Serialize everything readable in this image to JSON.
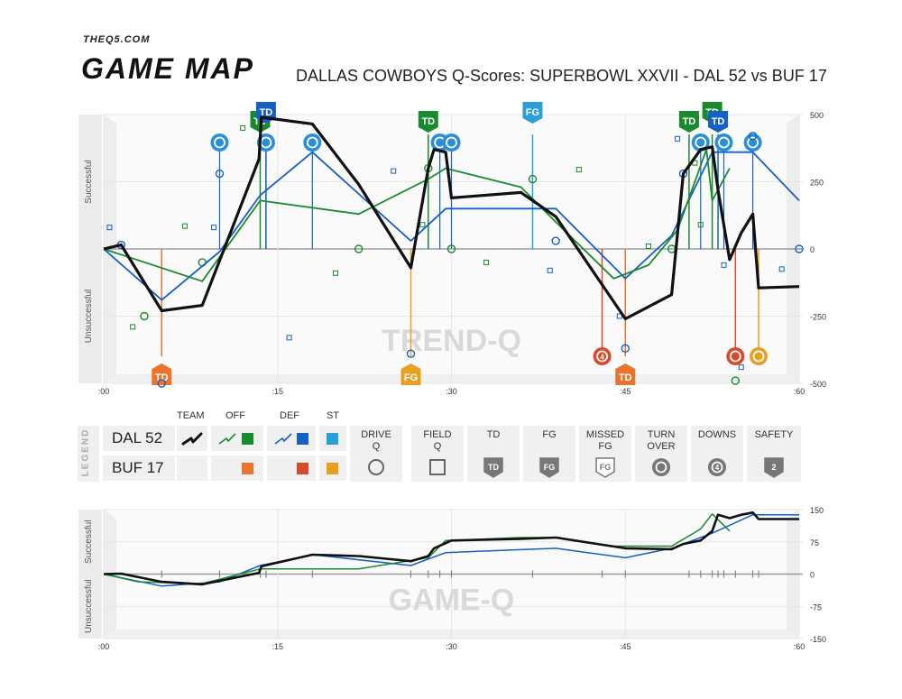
{
  "brand": {
    "site": "THEQ5.COM",
    "name": "GAME MAP"
  },
  "title": "DALLAS COWBOYS Q-Scores: SUPERBOWL XXVII - DAL 52 vs BUF 17",
  "colors": {
    "team": "#111111",
    "offense": "#1a8a2e",
    "defense": "#1560c4",
    "special_teams": "#2a9fd8",
    "opp_offense": "#e8742e",
    "opp_defense": "#d94a2a",
    "opp_special_teams": "#e8a020"
  },
  "chart_data": [
    {
      "type": "line",
      "name": "trend-q",
      "watermark": "TREND-Q",
      "ylabel_top": "Successful",
      "ylabel_bottom": "Unsuccessful",
      "xlim": [
        0,
        60
      ],
      "ylim": [
        -500,
        500
      ],
      "x_ticks": [
        ":00",
        ":15",
        ":30",
        ":45",
        ":60"
      ],
      "x_tick_values": [
        0,
        15,
        30,
        45,
        60
      ],
      "y_ticks": [
        500,
        250,
        0,
        -250,
        -500
      ],
      "series": [
        {
          "name": "TEAM",
          "role": "team",
          "x": [
            0,
            1.5,
            5,
            8.5,
            13.4,
            13.6,
            18,
            22,
            26.5,
            28,
            28.5,
            29.5,
            30,
            36,
            39,
            45,
            49,
            50,
            51.5,
            52.5,
            53,
            54,
            55,
            56,
            56.5,
            60
          ],
          "y": [
            0,
            15,
            -230,
            -210,
            335,
            490,
            465,
            240,
            -70,
            300,
            370,
            360,
            190,
            210,
            120,
            -260,
            -170,
            280,
            370,
            380,
            220,
            -40,
            60,
            130,
            -145,
            -140
          ]
        },
        {
          "name": "OFF",
          "role": "offense",
          "x": [
            0,
            8.5,
            13.5,
            22,
            28,
            29.5,
            36,
            39,
            44,
            47,
            49.5,
            52,
            52.5,
            54
          ],
          "y": [
            0,
            -120,
            180,
            130,
            260,
            300,
            230,
            100,
            -110,
            -60,
            70,
            370,
            180,
            300
          ]
        },
        {
          "name": "DEF",
          "role": "defense",
          "x": [
            0,
            5,
            10,
            13.5,
            18,
            26.5,
            29.5,
            39,
            45,
            49,
            52.5,
            56,
            60
          ],
          "y": [
            0,
            -190,
            -10,
            200,
            360,
            30,
            150,
            150,
            -110,
            50,
            360,
            360,
            180
          ]
        }
      ],
      "events": [
        {
          "kind": "TD",
          "team": "DAL",
          "unit": "offense",
          "x": 13.5
        },
        {
          "kind": "TD",
          "team": "DAL",
          "unit": "defense",
          "x": 14
        },
        {
          "kind": "TD",
          "team": "DAL",
          "unit": "offense",
          "x": 28
        },
        {
          "kind": "FG",
          "team": "DAL",
          "unit": "special_teams",
          "x": 37
        },
        {
          "kind": "TD",
          "team": "DAL",
          "unit": "offense",
          "x": 50.5
        },
        {
          "kind": "TD",
          "team": "DAL",
          "unit": "offense",
          "x": 52.5
        },
        {
          "kind": "TD",
          "team": "DAL",
          "unit": "defense",
          "x": 53
        },
        {
          "kind": "TD",
          "team": "BUF",
          "unit": "offense",
          "x": 5
        },
        {
          "kind": "FG",
          "team": "BUF",
          "unit": "special_teams",
          "x": 26.5
        },
        {
          "kind": "TD",
          "team": "BUF",
          "unit": "offense",
          "x": 45
        },
        {
          "kind": "DOWNS",
          "team": "BUF",
          "unit": "defense",
          "x": 43
        },
        {
          "kind": "TURNOVER",
          "team": "BUF",
          "unit": "defense",
          "x": 54.5
        },
        {
          "kind": "TURNOVER",
          "team": "BUF",
          "unit": "special_teams",
          "x": 56.5
        }
      ],
      "turnovers_gained": [
        {
          "unit": "defense",
          "x": 10
        },
        {
          "unit": "defense",
          "x": 14
        },
        {
          "unit": "defense",
          "x": 18
        },
        {
          "unit": "defense",
          "x": 29
        },
        {
          "unit": "defense",
          "x": 30
        },
        {
          "unit": "defense",
          "x": 51.5
        },
        {
          "unit": "defense",
          "x": 53.5
        },
        {
          "unit": "defense",
          "x": 56
        }
      ],
      "drive_q": [
        {
          "unit": "defense",
          "x": 1.5,
          "y": 15
        },
        {
          "unit": "offense",
          "x": 3.5,
          "y": -250
        },
        {
          "unit": "offense",
          "x": 8.5,
          "y": -50
        },
        {
          "unit": "defense",
          "x": 10,
          "y": 280
        },
        {
          "unit": "offense",
          "x": 22,
          "y": 0
        },
        {
          "unit": "defense",
          "x": 26.5,
          "y": -390
        },
        {
          "unit": "offense",
          "x": 28,
          "y": 300
        },
        {
          "unit": "offense",
          "x": 30,
          "y": 0
        },
        {
          "unit": "offense",
          "x": 37,
          "y": 260
        },
        {
          "unit": "defense",
          "x": 39,
          "y": 30
        },
        {
          "unit": "offense",
          "x": 49,
          "y": 0
        },
        {
          "unit": "defense",
          "x": 50,
          "y": 280
        },
        {
          "unit": "defense",
          "x": 45,
          "y": -370
        },
        {
          "unit": "defense",
          "x": 56,
          "y": 420
        },
        {
          "unit": "defense",
          "x": 60,
          "y": 0
        },
        {
          "unit": "offense",
          "x": 54.5,
          "y": -490
        },
        {
          "unit": "defense",
          "x": 5,
          "y": -500
        }
      ],
      "field_q": [
        {
          "unit": "defense",
          "x": 0.5,
          "y": 80
        },
        {
          "unit": "offense",
          "x": 2.5,
          "y": -290
        },
        {
          "unit": "offense",
          "x": 7,
          "y": 85
        },
        {
          "unit": "defense",
          "x": 9.5,
          "y": 80
        },
        {
          "unit": "offense",
          "x": 12,
          "y": 450
        },
        {
          "unit": "defense",
          "x": 16,
          "y": -330
        },
        {
          "unit": "offense",
          "x": 20,
          "y": -90
        },
        {
          "unit": "defense",
          "x": 25,
          "y": 290
        },
        {
          "unit": "offense",
          "x": 27.5,
          "y": 90
        },
        {
          "unit": "offense",
          "x": 33,
          "y": -50
        },
        {
          "unit": "defense",
          "x": 38.5,
          "y": -80
        },
        {
          "unit": "offense",
          "x": 41,
          "y": 295
        },
        {
          "unit": "defense",
          "x": 44.5,
          "y": -250
        },
        {
          "unit": "offense",
          "x": 47,
          "y": 10
        },
        {
          "unit": "defense",
          "x": 49.5,
          "y": 410
        },
        {
          "unit": "offense",
          "x": 51,
          "y": 320
        },
        {
          "unit": "offense",
          "x": 51.5,
          "y": 90
        },
        {
          "unit": "defense",
          "x": 53.5,
          "y": -60
        },
        {
          "unit": "defense",
          "x": 58.5,
          "y": -75
        },
        {
          "unit": "defense",
          "x": 55,
          "y": -440
        }
      ]
    },
    {
      "type": "line",
      "name": "game-q",
      "watermark": "GAME-Q",
      "ylabel_top": "Successful",
      "ylabel_bottom": "Unsuccessful",
      "xlim": [
        0,
        60
      ],
      "ylim": [
        -150,
        150
      ],
      "x_ticks": [
        ":00",
        ":15",
        ":30",
        ":45",
        ":60"
      ],
      "x_tick_values": [
        0,
        15,
        30,
        45,
        60
      ],
      "y_ticks": [
        150,
        75,
        0,
        -75,
        -150
      ],
      "series": [
        {
          "name": "TEAM",
          "role": "team",
          "x": [
            0,
            1.5,
            5,
            8.5,
            13.4,
            13.6,
            18,
            22,
            26.5,
            28,
            28.5,
            29.5,
            30,
            36,
            39,
            45,
            49,
            50,
            51.5,
            52.5,
            53,
            54,
            55,
            56,
            56.5,
            60
          ],
          "y": [
            0,
            1,
            -18,
            -24,
            3,
            18,
            45,
            42,
            30,
            42,
            60,
            72,
            78,
            82,
            85,
            60,
            58,
            70,
            78,
            100,
            138,
            130,
            138,
            143,
            128,
            128
          ]
        },
        {
          "name": "OFF",
          "role": "offense",
          "x": [
            0,
            3,
            8.5,
            13.5,
            22,
            28,
            29.5,
            36,
            39,
            44,
            49,
            51.5,
            52.5,
            54
          ],
          "y": [
            0,
            -18,
            -22,
            12,
            12,
            38,
            78,
            85,
            85,
            65,
            65,
            105,
            140,
            100
          ]
        },
        {
          "name": "DEF",
          "role": "defense",
          "x": [
            0,
            5,
            10,
            13.5,
            18,
            26.5,
            29.5,
            39,
            45,
            49,
            52.5,
            56,
            60
          ],
          "y": [
            0,
            -28,
            -18,
            20,
            45,
            20,
            50,
            60,
            38,
            60,
            95,
            138,
            138
          ]
        }
      ]
    }
  ],
  "legend": {
    "side_label": "LEGEND",
    "headers": {
      "team": "TEAM",
      "off": "OFF",
      "def": "DEF",
      "st": "ST"
    },
    "teams": [
      {
        "label": "DAL 52"
      },
      {
        "label": "BUF 17"
      }
    ],
    "symbols": [
      {
        "label": "DRIVE\nQ",
        "icon": "circle-outline"
      },
      {
        "label": "FIELD\nQ",
        "icon": "square-outline"
      },
      {
        "label": "TD",
        "icon": "td-shield",
        "badge": "TD"
      },
      {
        "label": "FG",
        "icon": "fg-shield",
        "badge": "FG"
      },
      {
        "label": "MISSED\nFG",
        "icon": "missed-fg-shield",
        "badge": "FG"
      },
      {
        "label": "TURN\nOVER",
        "icon": "turnover-arrows"
      },
      {
        "label": "DOWNS",
        "icon": "downs-arrows",
        "badge": "4"
      },
      {
        "label": "SAFETY",
        "icon": "safety-shield",
        "badge": "2"
      }
    ]
  }
}
